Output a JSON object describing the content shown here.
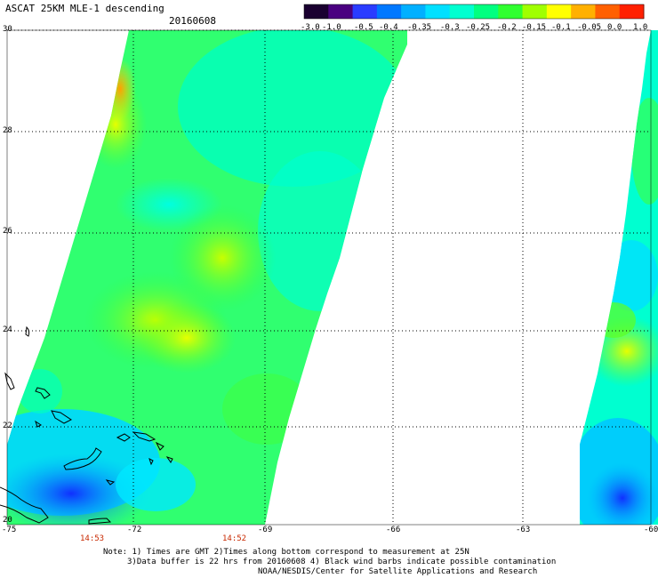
{
  "header": {
    "title": "ASCAT 25KM MLE-1 descending",
    "date": "20160608"
  },
  "colorbar": {
    "labels": [
      "-3.0",
      "-1.0",
      "-0.5",
      "-0.4",
      "-0.35",
      "-0.3",
      "-0.25",
      "-0.2",
      "-0.15",
      "-0.1",
      "-0.05",
      "0.0",
      "1.0"
    ],
    "colors": [
      "#1a0030",
      "#4a0080",
      "#2a3cff",
      "#0078ff",
      "#00b0ff",
      "#00e0ff",
      "#00ffd0",
      "#00ff80",
      "#30ff30",
      "#a0ff00",
      "#ffff00",
      "#ffb000",
      "#ff6000",
      "#ff2000"
    ]
  },
  "axes": {
    "lat_labels": [
      "30",
      "28",
      "26",
      "24",
      "22",
      "20"
    ],
    "lon_labels": [
      "-75",
      "-72",
      "-69",
      "-66",
      "-63",
      "-60"
    ],
    "time_labels": [
      "14:53",
      "14:52"
    ]
  },
  "notes": {
    "line1": "Note: 1) Times are GMT 2)Times along bottom correspond to measurement at 25N",
    "line2": "3)Data buffer is 22 hrs from 20160608 4) Black wind barbs indicate possible contamination",
    "line3": "NOAA/NESDIS/Center for Satellite Applications and Research"
  }
}
